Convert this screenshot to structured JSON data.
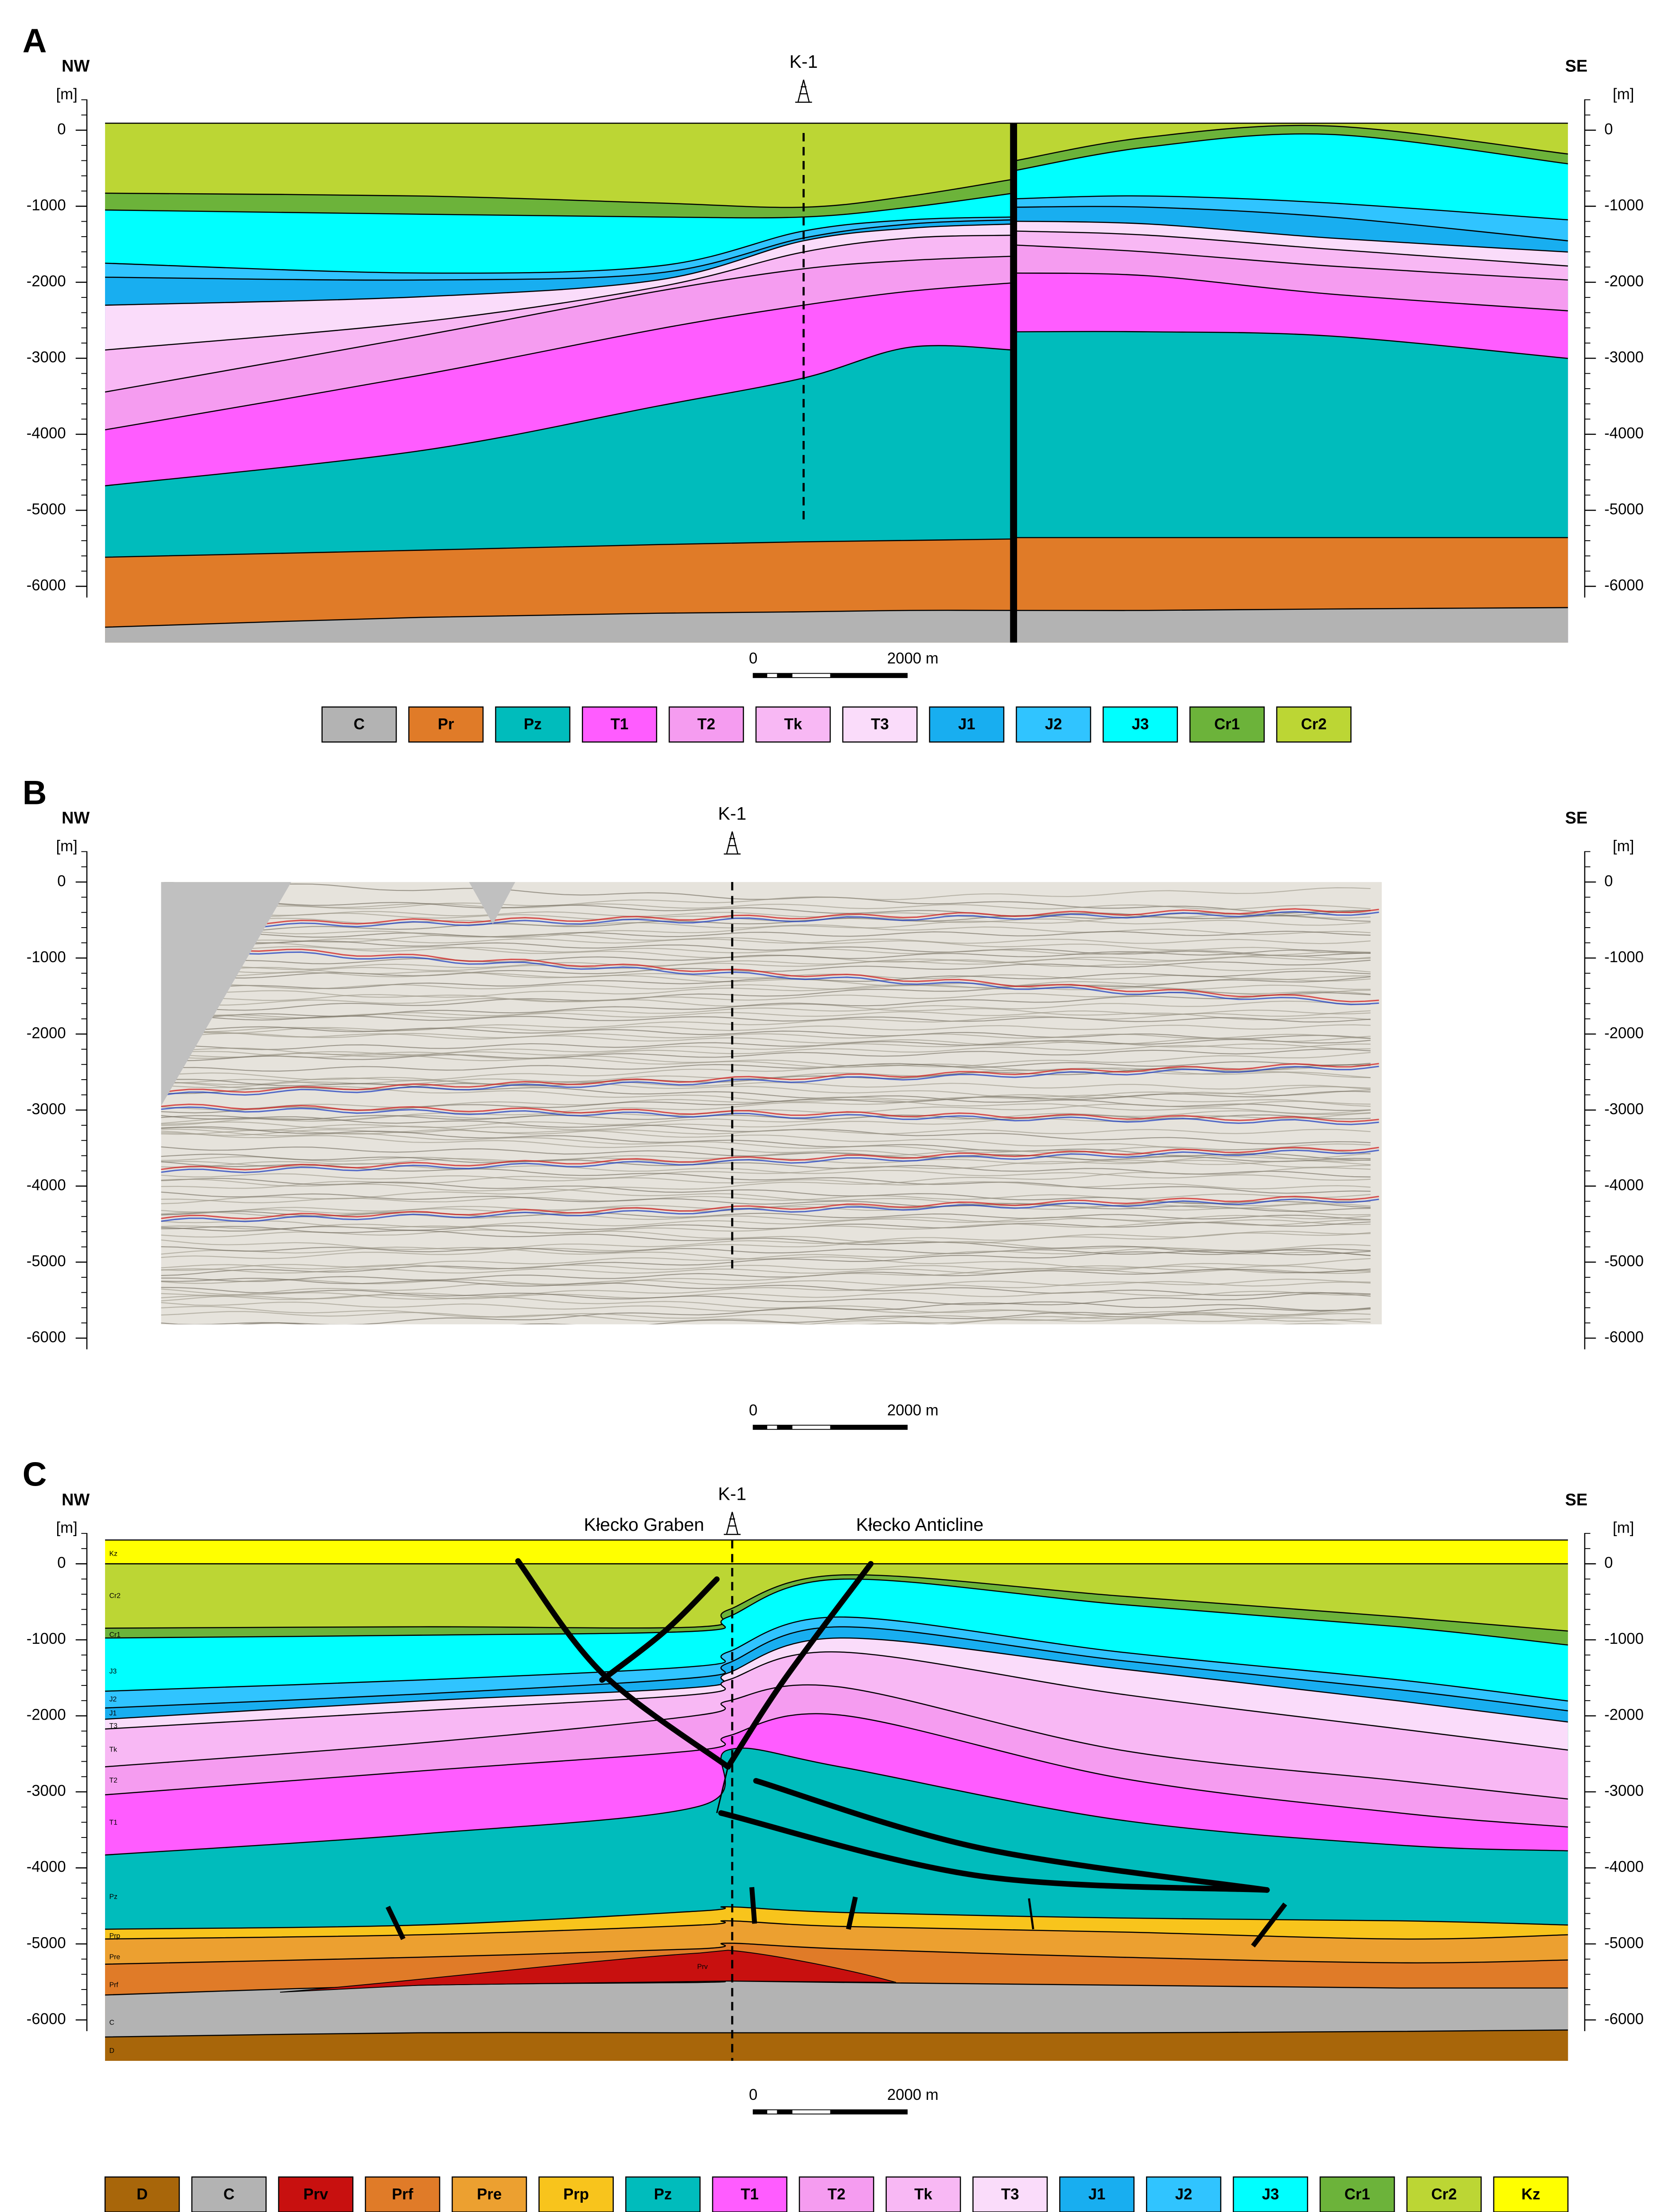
{
  "panels": [
    {
      "label": "A",
      "left_dir": "NW",
      "right_dir": "SE",
      "unit": "[m]",
      "depth_ticks": [
        0,
        -1000,
        -2000,
        -3000,
        -4000,
        -5000,
        -6000
      ],
      "well": "K-1",
      "scale_bar": {
        "start": "0",
        "end": "2000 m"
      },
      "legend": [
        {
          "name": "C",
          "color": "#b3b3b3"
        },
        {
          "name": "Pr",
          "color": "#e07b28"
        },
        {
          "name": "Pz",
          "color": "#00bcbc"
        },
        {
          "name": "T1",
          "color": "#ff5cff"
        },
        {
          "name": "T2",
          "color": "#f59cf0"
        },
        {
          "name": "Tk",
          "color": "#f8b8f4"
        },
        {
          "name": "T3",
          "color": "#fadcfa"
        },
        {
          "name": "J1",
          "color": "#18aef0"
        },
        {
          "name": "J2",
          "color": "#30c4ff"
        },
        {
          "name": "J3",
          "color": "#00ffff"
        },
        {
          "name": "Cr1",
          "color": "#6cb33a"
        },
        {
          "name": "Cr2",
          "color": "#bcd634"
        }
      ]
    },
    {
      "label": "B",
      "left_dir": "NW",
      "right_dir": "SE",
      "unit": "[m]",
      "depth_ticks": [
        0,
        -1000,
        -2000,
        -3000,
        -4000,
        -5000,
        -6000
      ],
      "well": "K-1",
      "scale_bar": {
        "start": "0",
        "end": "2000 m"
      }
    },
    {
      "label": "C",
      "left_dir": "NW",
      "right_dir": "SE",
      "unit": "[m]",
      "depth_ticks": [
        0,
        -1000,
        -2000,
        -3000,
        -4000,
        -5000,
        -6000
      ],
      "well": "K-1",
      "annotations": [
        "Kłecko Graben",
        "Kłecko Anticline"
      ],
      "layer_labels": [
        "Kz",
        "Cr2",
        "Cr1",
        "J3",
        "J2",
        "J1",
        "T3",
        "Tk",
        "T2",
        "T1",
        "Pz",
        "Prp",
        "Pre",
        "Prf",
        "C",
        "D",
        "Prv"
      ],
      "scale_bar": {
        "start": "0",
        "end": "2000 m"
      },
      "legend": [
        {
          "name": "D",
          "color": "#a8660a"
        },
        {
          "name": "C",
          "color": "#b3b3b3"
        },
        {
          "name": "Prv",
          "color": "#c8100f"
        },
        {
          "name": "Prf",
          "color": "#e07b28"
        },
        {
          "name": "Pre",
          "color": "#eca030"
        },
        {
          "name": "Prp",
          "color": "#f8c41c"
        },
        {
          "name": "Pz",
          "color": "#00bcbc"
        },
        {
          "name": "T1",
          "color": "#ff5cff"
        },
        {
          "name": "T2",
          "color": "#f59cf0"
        },
        {
          "name": "Tk",
          "color": "#f8b8f4"
        },
        {
          "name": "T3",
          "color": "#fadcfa"
        },
        {
          "name": "J1",
          "color": "#18aef0"
        },
        {
          "name": "J2",
          "color": "#30c4ff"
        },
        {
          "name": "J3",
          "color": "#00ffff"
        },
        {
          "name": "Cr1",
          "color": "#6cb33a"
        },
        {
          "name": "Cr2",
          "color": "#bcd634"
        },
        {
          "name": "Kz",
          "color": "#ffff00"
        }
      ]
    }
  ]
}
